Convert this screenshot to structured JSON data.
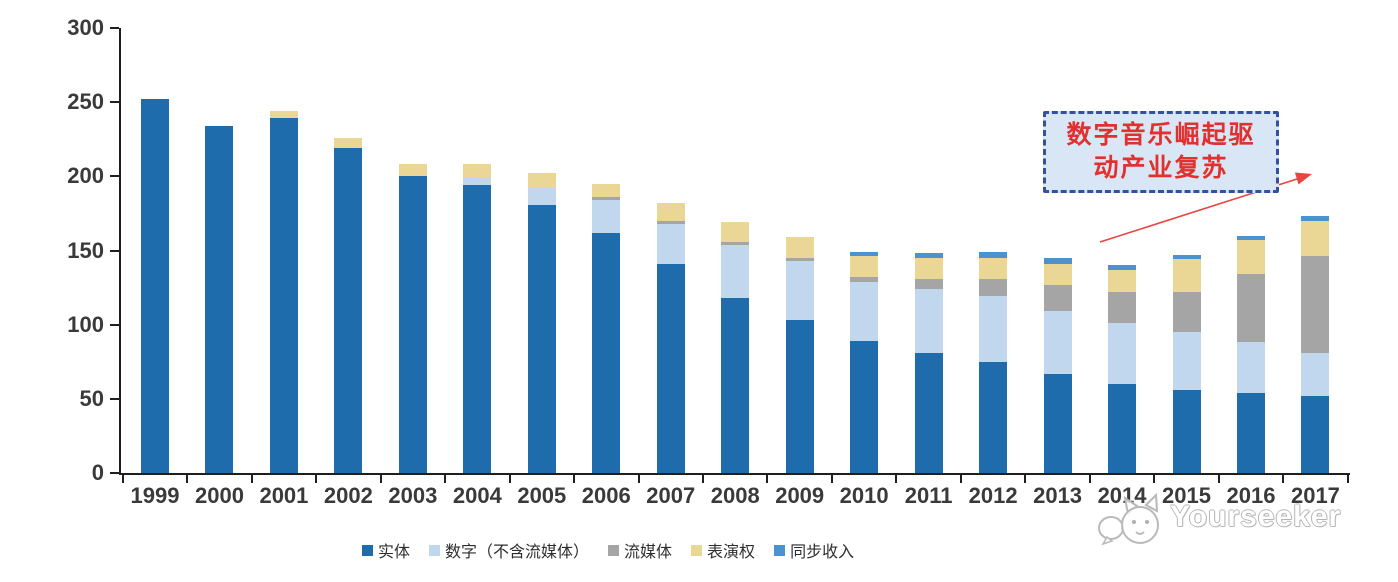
{
  "chart_data": {
    "type": "bar",
    "stacked": true,
    "title": "",
    "xlabel": "",
    "ylabel": "",
    "ylim": [
      0,
      300
    ],
    "yticks": [
      0,
      50,
      100,
      150,
      200,
      250,
      300
    ],
    "grid": false,
    "legend_position": "bottom",
    "categories": [
      "1999",
      "2000",
      "2001",
      "2002",
      "2003",
      "2004",
      "2005",
      "2006",
      "2007",
      "2008",
      "2009",
      "2010",
      "2011",
      "2012",
      "2013",
      "2014",
      "2015",
      "2016",
      "2017"
    ],
    "series": [
      {
        "key": "physical",
        "name": "实体",
        "color": "#1E6CAB",
        "values": [
          252,
          234,
          239,
          219,
          200,
          194,
          181,
          162,
          141,
          118,
          103,
          89,
          81,
          75,
          67,
          60,
          56,
          54,
          52
        ]
      },
      {
        "key": "digital-excl-streaming",
        "name": "数字（不含流媒体）",
        "color": "#C0D7EE",
        "values": [
          0,
          0,
          0,
          0,
          0,
          5,
          11,
          22,
          27,
          36,
          40,
          40,
          43,
          44,
          42,
          41,
          39,
          34,
          29
        ]
      },
      {
        "key": "streaming",
        "name": "流媒体",
        "color": "#A5A5A5",
        "values": [
          0,
          0,
          0,
          0,
          0,
          0,
          0,
          2,
          2,
          2,
          2,
          3,
          7,
          12,
          18,
          21,
          27,
          46,
          65
        ]
      },
      {
        "key": "performance-rights",
        "name": "表演权",
        "color": "#EAD795",
        "values": [
          0,
          0,
          5,
          7,
          8,
          9,
          10,
          9,
          12,
          13,
          14,
          14,
          14,
          14,
          14,
          15,
          22,
          23,
          24
        ]
      },
      {
        "key": "sync-revenue",
        "name": "同步收入",
        "color": "#4C92CE",
        "values": [
          0,
          0,
          0,
          0,
          0,
          0,
          0,
          0,
          0,
          0,
          0,
          3,
          3,
          4,
          4,
          3,
          3,
          3,
          3
        ]
      }
    ]
  },
  "annotation": {
    "line1": "数字音乐崛起驱",
    "line2": "动产业复苏",
    "text_color": "#E0312E",
    "box_fill": "#D9E6F5",
    "border_color": "#33519E",
    "arrow_color": "#E8463F"
  },
  "watermark": {
    "text": "Yourseeker",
    "icon": "cat-logo"
  }
}
